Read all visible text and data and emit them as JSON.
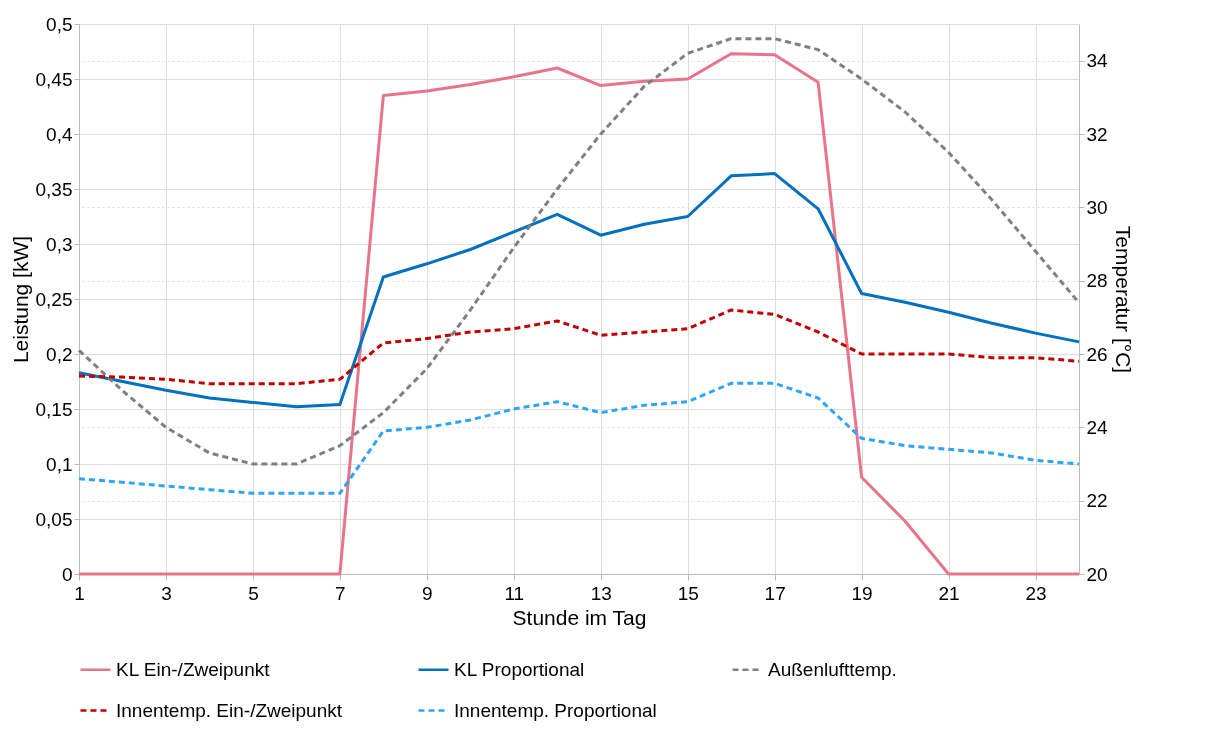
{
  "chart_data": {
    "type": "line",
    "xlabel": "Stunde im Tag",
    "ylabel": "Leistung [kW]",
    "y2label": "Temperatur [°C]",
    "x": [
      1,
      2,
      3,
      4,
      5,
      6,
      7,
      8,
      9,
      10,
      11,
      12,
      13,
      14,
      15,
      16,
      17,
      18,
      19,
      20,
      21,
      22,
      23,
      24
    ],
    "xlim": [
      1,
      24
    ],
    "xticks": [
      1,
      3,
      5,
      7,
      9,
      11,
      13,
      15,
      17,
      19,
      21,
      23
    ],
    "ylim": [
      0,
      0.5
    ],
    "yticks": [
      0,
      {
        "value": 0.05,
        "label": "0,05"
      },
      {
        "value": 0.1,
        "label": "0,1"
      },
      {
        "value": 0.15,
        "label": "0,15"
      },
      {
        "value": 0.2,
        "label": "0,2"
      },
      {
        "value": 0.25,
        "label": "0,25"
      },
      {
        "value": 0.3,
        "label": "0,3"
      },
      {
        "value": 0.35,
        "label": "0,35"
      },
      {
        "value": 0.4,
        "label": "0,4"
      },
      {
        "value": 0.45,
        "label": "0,45"
      },
      {
        "value": 0.5,
        "label": "0,5"
      }
    ],
    "y2lim": [
      20,
      35
    ],
    "y2ticks": [
      20,
      22,
      24,
      26,
      28,
      30,
      32,
      34
    ],
    "grid": true,
    "legend": "bottom",
    "marker": "none",
    "series": [
      {
        "name": "KL Ein-/Zweipunkt",
        "color": "#e8748a",
        "line_style": "solid",
        "values": [
          0,
          0,
          0,
          0,
          0,
          0,
          0,
          0.435,
          0.439,
          0.445,
          0.452,
          0.46,
          0.444,
          0.448,
          0.45,
          0.473,
          0.472,
          0.447,
          0.088,
          0.048,
          0,
          0,
          0,
          0
        ]
      },
      {
        "name": "KL Proportional",
        "color": "#0070c0",
        "line_style": "solid",
        "values": [
          0.183,
          0.175,
          0.167,
          0.16,
          0.156,
          0.152,
          0.154,
          0.27,
          0.282,
          0.295,
          0.311,
          0.327,
          0.308,
          0.318,
          0.325,
          0.362,
          0.364,
          0.332,
          0.255,
          0.247,
          0.238,
          0.228,
          0.219,
          0.211
        ]
      },
      {
        "name": "Außenlufttemp.",
        "color": "#808080",
        "line_style": "dashed",
        "axis": "y2",
        "values": [
          26.1,
          25.0,
          24.0,
          23.3,
          23.0,
          23.0,
          23.5,
          24.4,
          25.6,
          27.2,
          28.9,
          30.5,
          32.0,
          33.3,
          34.2,
          34.6,
          34.6,
          34.3,
          33.5,
          32.6,
          31.5,
          30.2,
          28.8,
          27.4
        ]
      },
      {
        "name": "Innentemp. Ein-/Zweipunkt",
        "color": "#c00000",
        "line_style": "dashed",
        "axis": "y2",
        "values": [
          25.4,
          25.37,
          25.31,
          25.19,
          25.19,
          25.19,
          25.31,
          26.3,
          26.42,
          26.6,
          26.69,
          26.9,
          26.51,
          26.6,
          26.69,
          27.2,
          27.08,
          26.6,
          26,
          26,
          26,
          25.9,
          25.9,
          25.8
        ]
      },
      {
        "name": "Innentemp. Proportional",
        "color": "#2ea5f5",
        "line_style": "dashed",
        "axis": "y2",
        "values": [
          22.6,
          22.5,
          22.4,
          22.3,
          22.2,
          22.2,
          22.2,
          23.9,
          24.0,
          24.2,
          24.5,
          24.7,
          24.4,
          24.6,
          24.7,
          25.2,
          25.2,
          24.8,
          23.7,
          23.5,
          23.4,
          23.3,
          23.1,
          23.0
        ]
      }
    ]
  }
}
